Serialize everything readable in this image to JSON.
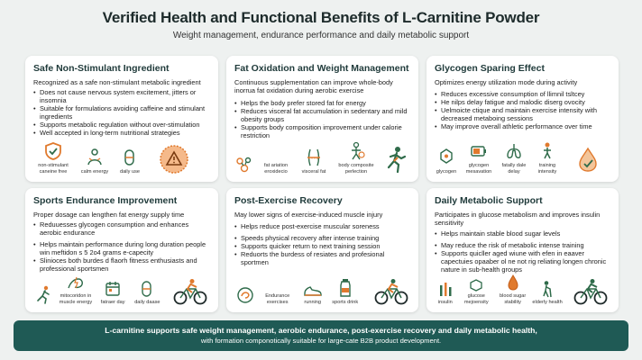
{
  "header": {
    "title": "Verified Health and Functional Benefits of L-Carnitine Powder",
    "subtitle": "Weight management, endurance performance and daily metabolic support"
  },
  "colors": {
    "background": "#eef1f0",
    "accent_green": "#2f6b4a",
    "accent_orange": "#e07a2e",
    "footer_teal": "#1f5a55"
  },
  "cards": [
    {
      "title": "Safe Non-Stimulant Ingredient",
      "intro": "Recognized as a safe non-stimulant metabolic ingredient",
      "bullets": [
        "Does not cause nervous system excitement, jitters or insomnia",
        "Suitable for formulations avoiding caffeine and stimulant ingredients",
        "Supports metabolic regulation without over-stimulation",
        "Well accepted in long-term nutritional strategies"
      ],
      "icons": [
        {
          "name": "shield-check-icon",
          "label": "non-stimulant caneine free"
        },
        {
          "name": "calm-person-icon",
          "label": "calm energy"
        },
        {
          "name": "capsule-icon",
          "label": "daily use"
        },
        {
          "name": "warning-badge-icon",
          "label": ""
        }
      ]
    },
    {
      "title": "Fat Oxidation and Weight Management",
      "intro": "Continuous supplementation can improve whole-body inorrua fat oxidation during aerobic exercise",
      "bullets": [
        "Helps the body prefer stored fat for energy",
        "Reduces visceral fat accumulation in sedentary and mild obesity groups",
        "Supports body composition improvement under calorie restriction"
      ],
      "icons": [
        {
          "name": "fat-molecule-icon",
          "label": "fat ariation eroxidecio"
        },
        {
          "name": "waist-measure-icon",
          "label": "visceral fat"
        },
        {
          "name": "body-composition-icon",
          "label": "body composite perlection"
        }
      ]
    },
    {
      "title": "Glycogen Sparing Effect",
      "intro": "Optimizes energy utilization mode during activity",
      "bullets": [
        "Reduces excessive consumption of llimnil tsltcey",
        "He nilps delay fatigue and malodic diserg ovocity",
        "Uelmoicte ctique and maintain exercise intensity with decreased metaboing sessions",
        "May improve overall athletic performance over time"
      ],
      "icons": [
        {
          "name": "glycogen-molecule-icon",
          "label": "glycogen"
        },
        {
          "name": "battery-icon",
          "label": "glycogen mesavation"
        },
        {
          "name": "lungs-icon",
          "label": "fatally dale delay"
        },
        {
          "name": "training-icon",
          "label": "training intensity"
        },
        {
          "name": "water-drop-icon",
          "label": ""
        }
      ]
    },
    {
      "title": "Sports Endurance Improvement",
      "intro": "Proper dosage can lengthen fat energy supply time",
      "bullets": [
        "Reduuesses glycogen consumption and enhances aerobic endurance",
        "Helps maintain performance during long duration people win meftidon s 5 2o4 grams e-capecity",
        "Slinioces both burdes d flaorh fitness enthusiasts and professional sportsmen"
      ],
      "icons": [
        {
          "name": "runner-icon",
          "label": ""
        },
        {
          "name": "muscle-energy-icon",
          "label": "mitocoridon in muscle energy"
        },
        {
          "name": "calendar-icon",
          "label": "fatraer day"
        },
        {
          "name": "capsule-icon",
          "label": "daily daase"
        },
        {
          "name": "cyclist-icon",
          "label": ""
        }
      ]
    },
    {
      "title": "Post-Exercise Recovery",
      "intro": "May lower signs of exercise-induced muscle injury",
      "bullets": [
        "Helps reduce post-exercise muscular soreness",
        "Speeds physical recovery after intense training",
        "Supports quicker return to next training session",
        "Reduorts the burdess of resiates and profesional sportmen"
      ],
      "icons": [
        {
          "name": "muscle-recovery-icon",
          "label": ""
        },
        {
          "name": "endurance-icon",
          "label": "Endurance exercises"
        },
        {
          "name": "running-shoe-icon",
          "label": "running"
        },
        {
          "name": "sports-drink-icon",
          "label": "sports drink"
        },
        {
          "name": "cyclist-icon",
          "label": ""
        }
      ]
    },
    {
      "title": "Daily Metabolic Support",
      "intro": "Participates in glucose metabolism and improves insulin sensitivity",
      "bullets": [
        "Helps maintain stable blood sugar levels",
        "May reduce the risk of metabolic intense training",
        "Supports quicller aged wiune with efen in eaaver capectuies opaaber ol ne not rig reliating longen chronic nature in sub-health groups"
      ],
      "icons": [
        {
          "name": "insulin-icon",
          "label": "insulin"
        },
        {
          "name": "glucose-icon",
          "label": "glucose mejoensity"
        },
        {
          "name": "blood-sugar-icon",
          "label": "blood sugar stability"
        },
        {
          "name": "elderly-icon",
          "label": "elderly health"
        },
        {
          "name": "cyclist-icon",
          "label": ""
        }
      ]
    }
  ],
  "footer": {
    "line1": "L-carnitine supports safe weight management, aerobic endurance, post-exercise recovery and daily metabolic health,",
    "line2": "with formation componotically suitable for large-cate B2B product development."
  }
}
